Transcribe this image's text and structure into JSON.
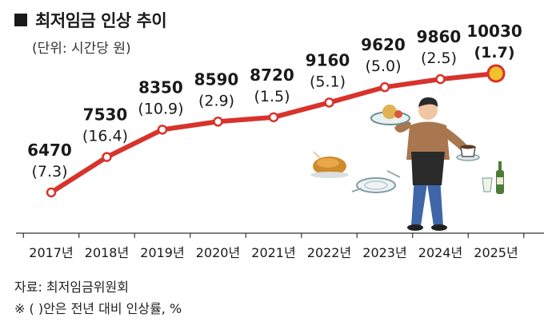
{
  "header": {
    "title": "최저임금 인상 추이",
    "unit": "(단위: 시간당 원)"
  },
  "footer": {
    "source": "자료: 최저임금위원회",
    "note": "※ (  )안은 전년 대비 인상률, %"
  },
  "colors": {
    "line": "#d8332b",
    "highlight": "#e0237a",
    "end_marker_fill": "#f2c12e"
  },
  "chart_data": {
    "type": "line",
    "categories": [
      "2017년",
      "2018년",
      "2019년",
      "2020년",
      "2021년",
      "2022년",
      "2023년",
      "2024년",
      "2025년"
    ],
    "values": [
      6470,
      7530,
      8350,
      8590,
      8720,
      9160,
      9620,
      9860,
      10030
    ],
    "value_labels": [
      "6470",
      "7530",
      "8350",
      "8590",
      "8720",
      "9160",
      "9620",
      "9860",
      "10030"
    ],
    "rate_labels": [
      "(7.3)",
      "(16.4)",
      "(10.9)",
      "(2.9)",
      "(1.5)",
      "(5.1)",
      "(5.0)",
      "(2.5)",
      "(1.7)"
    ],
    "highlight_index": 8,
    "grid": false,
    "illustration": "waiter-with-dishes"
  }
}
